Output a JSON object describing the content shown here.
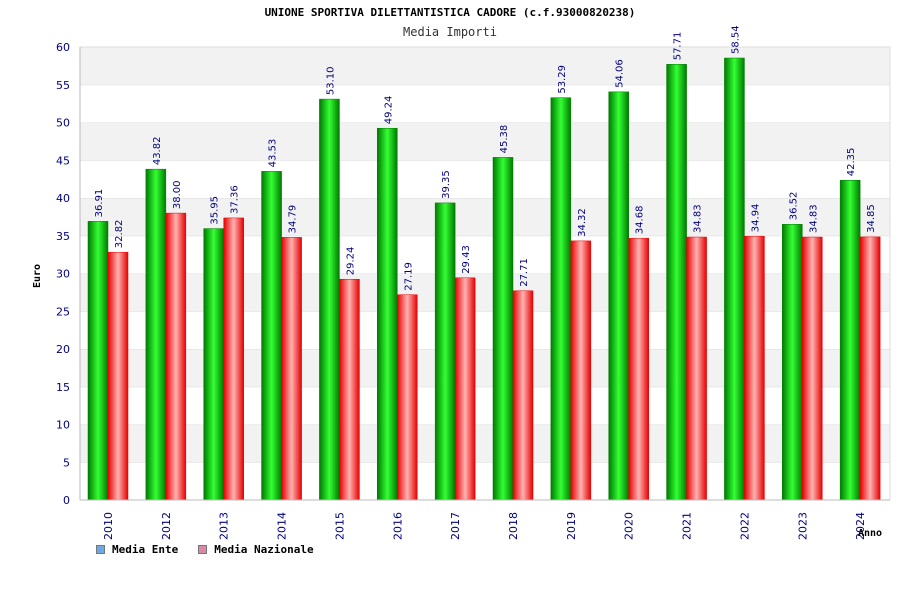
{
  "chart_data": {
    "type": "bar",
    "title": "UNIONE SPORTIVA DILETTANTISTICA CADORE (c.f.93000820238)",
    "subtitle": "Media Importi",
    "xlabel": "Anno",
    "ylabel": "Euro",
    "ylim": [
      0,
      60
    ],
    "yticks": [
      0,
      5,
      10,
      15,
      20,
      25,
      30,
      35,
      40,
      45,
      50,
      55,
      60
    ],
    "grid": true,
    "legend_position": "bottom-left",
    "categories": [
      "2010",
      "2012",
      "2013",
      "2014",
      "2015",
      "2016",
      "2017",
      "2018",
      "2019",
      "2020",
      "2021",
      "2022",
      "2023",
      "2024"
    ],
    "series": [
      {
        "name": "Media Ente",
        "values": [
          36.91,
          43.82,
          35.95,
          43.53,
          53.1,
          49.24,
          39.35,
          45.38,
          53.29,
          54.06,
          57.71,
          58.54,
          36.52,
          42.35
        ],
        "labels": [
          "36.91",
          "43.82",
          "35.95",
          "43.53",
          "53.10",
          "49.24",
          "39.35",
          "45.38",
          "53.29",
          "54.06",
          "57.71",
          "58.54",
          "36.52",
          "42.35"
        ]
      },
      {
        "name": "Media Nazionale",
        "values": [
          32.82,
          38.0,
          37.36,
          34.79,
          29.24,
          27.19,
          29.43,
          27.71,
          34.32,
          34.68,
          34.83,
          34.94,
          34.83,
          34.85
        ],
        "labels": [
          "32.82",
          "38.00",
          "37.36",
          "34.79",
          "29.24",
          "27.19",
          "29.43",
          "27.71",
          "34.32",
          "34.68",
          "34.83",
          "34.94",
          "34.83",
          "34.85"
        ]
      }
    ]
  },
  "legend": [
    {
      "label": "Media Ente",
      "color": "#6fa8e8"
    },
    {
      "label": "Media Nazionale",
      "color": "#d98aa8"
    }
  ],
  "colors": {
    "ente_dark": "#007a00",
    "ente_light": "#33ff33",
    "naz_dark": "#e60000",
    "naz_light": "#ffb3b3",
    "band": "#f2f2f2",
    "axis_text": "#000080"
  }
}
